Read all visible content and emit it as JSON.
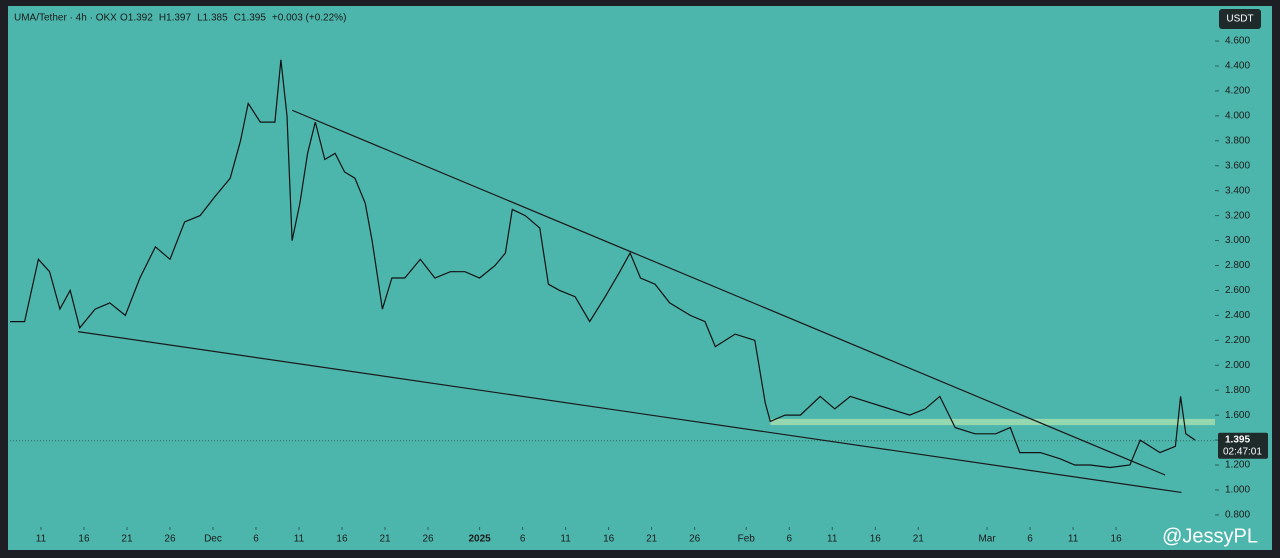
{
  "chart_data": {
    "type": "line",
    "symbol": "UMA/Tether · 4h · OKX",
    "ohlc": [
      "O1.392",
      "H1.397",
      "L1.385",
      "C1.395",
      "+0.003 (+0.22%)"
    ],
    "currency": "USDT",
    "current_price": 1.395,
    "countdown": "02:47:01",
    "watermark": "@JessyPL",
    "color": "#111111",
    "xlim": [
      -3.6,
      136.5
    ],
    "ylim": [
      0.703,
      4.865
    ],
    "xticks": [
      {
        "value": 0,
        "label": "11"
      },
      {
        "value": 5,
        "label": "16"
      },
      {
        "value": 10,
        "label": "21"
      },
      {
        "value": 15,
        "label": "26"
      },
      {
        "value": 20,
        "label": "Dec"
      },
      {
        "value": 25,
        "label": "6"
      },
      {
        "value": 30,
        "label": "11"
      },
      {
        "value": 35,
        "label": "16"
      },
      {
        "value": 40,
        "label": "21"
      },
      {
        "value": 45,
        "label": "26"
      },
      {
        "value": 51,
        "label": "2025"
      },
      {
        "value": 56,
        "label": "6"
      },
      {
        "value": 61,
        "label": "11"
      },
      {
        "value": 66,
        "label": "16"
      },
      {
        "value": 71,
        "label": "21"
      },
      {
        "value": 76,
        "label": "26"
      },
      {
        "value": 82,
        "label": "Feb"
      },
      {
        "value": 87,
        "label": "6"
      },
      {
        "value": 92,
        "label": "11"
      },
      {
        "value": 97,
        "label": "16"
      },
      {
        "value": 102,
        "label": "21"
      },
      {
        "value": 110,
        "label": "Mar"
      },
      {
        "value": 115,
        "label": "6"
      },
      {
        "value": 120,
        "label": "11"
      },
      {
        "value": 125,
        "label": "16"
      }
    ],
    "yticks": [
      {
        "value": 0.8,
        "label": "0.800"
      },
      {
        "value": 1.0,
        "label": "1.000"
      },
      {
        "value": 1.2,
        "label": "1.200"
      },
      {
        "value": 1.4,
        "label": "1.400"
      },
      {
        "value": 1.6,
        "label": "1.600"
      },
      {
        "value": 1.8,
        "label": "1.800"
      },
      {
        "value": 2.0,
        "label": "2.000"
      },
      {
        "value": 2.2,
        "label": "2.200"
      },
      {
        "value": 2.4,
        "label": "2.400"
      },
      {
        "value": 2.6,
        "label": "2.600"
      },
      {
        "value": 2.8,
        "label": "2.800"
      },
      {
        "value": 3.0,
        "label": "3.000"
      },
      {
        "value": 3.2,
        "label": "3.200"
      },
      {
        "value": 3.4,
        "label": "3.400"
      },
      {
        "value": 3.6,
        "label": "3.600"
      },
      {
        "value": 3.8,
        "label": "3.800"
      },
      {
        "value": 4.0,
        "label": "4.000"
      },
      {
        "value": 4.2,
        "label": "4.200"
      },
      {
        "value": 4.4,
        "label": "4.400"
      },
      {
        "value": 4.6,
        "label": "4.600"
      }
    ],
    "x": [
      -3.6,
      -1.9,
      -0.3,
      1.0,
      2.2,
      3.4,
      4.5,
      6.3,
      8.0,
      9.8,
      11.5,
      13.3,
      15.0,
      16.7,
      18.5,
      20.2,
      22.0,
      23.2,
      24.1,
      25.5,
      27.2,
      27.9,
      28.6,
      29.2,
      30.1,
      31.0,
      31.9,
      33.0,
      34.2,
      35.3,
      36.5,
      37.7,
      38.5,
      39.7,
      40.8,
      42.3,
      44.1,
      45.8,
      47.6,
      49.3,
      51.0,
      52.8,
      54.0,
      54.8,
      56.3,
      58.0,
      59.0,
      60.3,
      62.1,
      63.8,
      65.6,
      67.3,
      68.5,
      69.7,
      71.4,
      73.1,
      75.5,
      77.2,
      78.4,
      80.7,
      83.0,
      84.2,
      84.8,
      86.5,
      88.3,
      90.6,
      92.3,
      94.1,
      96.4,
      98.7,
      101.0,
      102.8,
      104.5,
      106.3,
      108.6,
      111.0,
      112.7,
      113.8,
      116.2,
      118.5,
      120.2,
      122.0,
      124.3,
      126.6,
      127.8,
      130.1,
      131.9,
      132.5,
      133.1,
      134.2
    ],
    "values": [
      2.35,
      2.35,
      2.85,
      2.75,
      2.45,
      2.6,
      2.3,
      2.45,
      2.5,
      2.4,
      2.7,
      2.95,
      2.85,
      3.15,
      3.2,
      3.35,
      3.5,
      3.8,
      4.1,
      3.95,
      3.95,
      4.45,
      4.0,
      3.0,
      3.3,
      3.7,
      3.95,
      3.65,
      3.7,
      3.55,
      3.5,
      3.3,
      3.0,
      2.45,
      2.7,
      2.7,
      2.85,
      2.7,
      2.75,
      2.75,
      2.7,
      2.8,
      2.9,
      3.25,
      3.2,
      3.1,
      2.65,
      2.6,
      2.55,
      2.35,
      2.55,
      2.75,
      2.9,
      2.7,
      2.65,
      2.5,
      2.4,
      2.35,
      2.15,
      2.25,
      2.2,
      1.7,
      1.55,
      1.6,
      1.6,
      1.75,
      1.65,
      1.75,
      1.7,
      1.65,
      1.6,
      1.65,
      1.75,
      1.5,
      1.45,
      1.45,
      1.5,
      1.3,
      1.3,
      1.25,
      1.2,
      1.2,
      1.18,
      1.2,
      1.4,
      1.3,
      1.35,
      1.75,
      1.45,
      1.4
    ],
    "trendlines": [
      {
        "x": [
          29.2,
          130.7
        ],
        "values": [
          4.045,
          1.12
        ]
      },
      {
        "x": [
          4.3,
          132.6
        ],
        "values": [
          2.27,
          0.98
        ]
      }
    ],
    "zone": {
      "x": [
        84.8,
        136.5
      ],
      "values": [
        1.52,
        1.57
      ],
      "color": "#a8e0b0"
    }
  }
}
